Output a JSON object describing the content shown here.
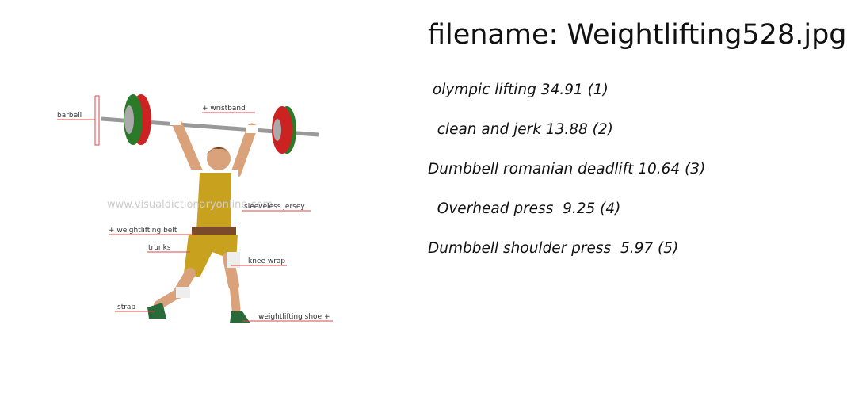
{
  "header": {
    "filename": "filename: Weightlifting528.jpg"
  },
  "predictions": [
    " olympic lifting 34.91 (1)",
    "  clean and jerk 13.88 (2)",
    "Dumbbell romanian deadlift 10.64 (3)",
    "  Overhead press  9.25 (4)",
    "Dumbbell shoulder press  5.97 (5)"
  ],
  "illustration": {
    "watermark": "www.visualdictionaryonline.com",
    "labels": {
      "barbell": "barbell",
      "wristband": "+ wristband",
      "jersey": "sleeveless jersey",
      "belt": "+ weightlifting belt",
      "trunks": "trunks",
      "knee_wrap": "knee wrap",
      "strap": "strap",
      "shoe": "weightlifting shoe +"
    }
  }
}
